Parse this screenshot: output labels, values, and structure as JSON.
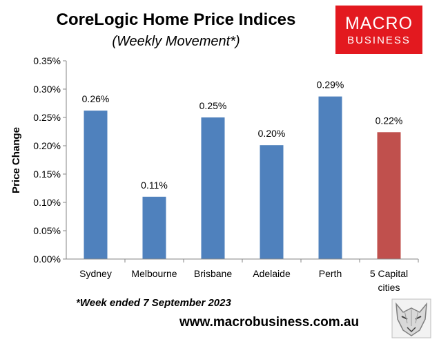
{
  "header": {
    "title": "CoreLogic Home Price Indices",
    "subtitle": "(Weekly Movement*)"
  },
  "logo": {
    "line1": "MACRO",
    "line2": "BUSINESS",
    "bg_color": "#e3191f"
  },
  "footer": {
    "footnote": "*Week ended 7 September 2023",
    "website": "www.macrobusiness.com.au",
    "mascot_icon": "wolf-head-icon"
  },
  "chart_data": {
    "type": "bar",
    "title": "CoreLogic Home Price Indices",
    "subtitle": "(Weekly Movement*)",
    "xlabel": "",
    "ylabel": "Price Change",
    "ylim": [
      0,
      0.35
    ],
    "yticks": [
      0,
      0.05,
      0.1,
      0.15,
      0.2,
      0.25,
      0.3,
      0.35
    ],
    "ytick_labels": [
      "0.00%",
      "0.05%",
      "0.10%",
      "0.15%",
      "0.20%",
      "0.25%",
      "0.30%",
      "0.35%"
    ],
    "categories": [
      [
        "Sydney"
      ],
      [
        "Melbourne"
      ],
      [
        "Brisbane"
      ],
      [
        "Adelaide"
      ],
      [
        "Perth"
      ],
      [
        "5 Capital",
        "cities"
      ]
    ],
    "values": [
      0.262,
      0.11,
      0.25,
      0.201,
      0.287,
      0.224
    ],
    "data_labels": [
      "0.26%",
      "0.11%",
      "0.25%",
      "0.20%",
      "0.29%",
      "0.22%"
    ],
    "bar_colors": [
      "#4f81bd",
      "#4f81bd",
      "#4f81bd",
      "#4f81bd",
      "#4f81bd",
      "#c0504d"
    ],
    "plot_bg": "#ffffff",
    "grid": false,
    "legend": "none"
  }
}
